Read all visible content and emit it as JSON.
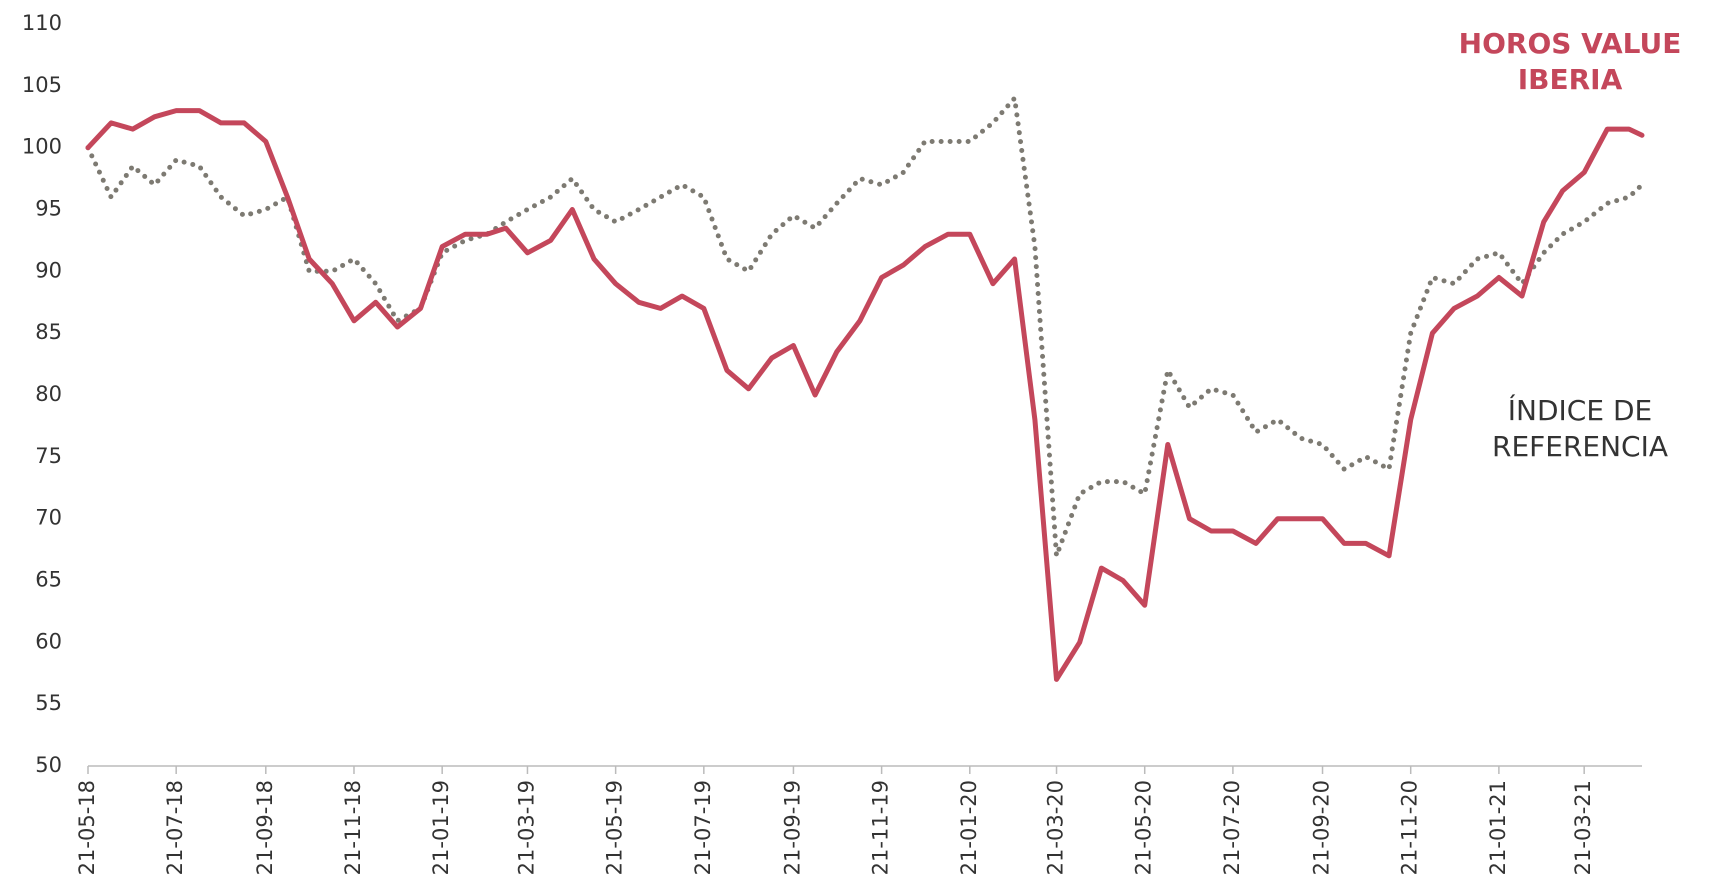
{
  "chart_data": {
    "type": "line",
    "x": [
      "2018-05-21",
      "2018-06-06",
      "2018-06-21",
      "2018-07-06",
      "2018-07-21",
      "2018-08-06",
      "2018-08-21",
      "2018-09-06",
      "2018-09-21",
      "2018-10-06",
      "2018-10-21",
      "2018-11-06",
      "2018-11-21",
      "2018-12-06",
      "2018-12-21",
      "2019-01-06",
      "2019-01-21",
      "2019-02-06",
      "2019-02-21",
      "2019-03-06",
      "2019-03-21",
      "2019-04-06",
      "2019-04-21",
      "2019-05-06",
      "2019-05-21",
      "2019-06-06",
      "2019-06-21",
      "2019-07-06",
      "2019-07-21",
      "2019-08-06",
      "2019-08-21",
      "2019-09-06",
      "2019-09-21",
      "2019-10-06",
      "2019-10-21",
      "2019-11-06",
      "2019-11-21",
      "2019-12-06",
      "2019-12-21",
      "2020-01-06",
      "2020-01-21",
      "2020-02-06",
      "2020-02-21",
      "2020-03-06",
      "2020-03-21",
      "2020-04-06",
      "2020-04-21",
      "2020-05-06",
      "2020-05-21",
      "2020-06-06",
      "2020-06-21",
      "2020-07-06",
      "2020-07-21",
      "2020-08-06",
      "2020-08-21",
      "2020-09-06",
      "2020-09-21",
      "2020-10-06",
      "2020-10-21",
      "2020-11-06",
      "2020-11-21",
      "2020-12-06",
      "2020-12-21",
      "2021-01-06",
      "2021-01-21",
      "2021-02-06",
      "2021-02-21",
      "2021-03-06",
      "2021-03-21",
      "2021-04-06",
      "2021-04-21",
      "2021-04-30"
    ],
    "series": [
      {
        "name": "HOROS VALUE IBERIA",
        "color": "#c4475b",
        "style": "solid",
        "values": [
          100,
          102,
          101.5,
          102.5,
          103,
          103,
          102,
          102,
          100.5,
          96,
          91,
          89,
          86,
          87.5,
          85.5,
          87,
          92,
          93,
          93,
          93.5,
          91.5,
          92.5,
          95,
          91,
          89,
          87.5,
          87,
          88,
          87,
          82,
          80.5,
          83,
          84,
          80,
          83.5,
          86,
          89.5,
          90.5,
          92,
          93,
          93,
          89,
          91,
          78,
          57,
          60,
          66,
          65,
          63,
          76,
          70,
          69,
          69,
          68,
          70,
          70,
          70,
          68,
          68,
          67,
          78,
          85,
          87,
          88,
          89.5,
          88,
          94,
          96.5,
          98,
          101.5,
          101.5,
          101
        ]
      },
      {
        "name": "ÍNDICE DE REFERENCIA",
        "color": "#7d7a72",
        "style": "dotted",
        "values": [
          100,
          96,
          98.5,
          97,
          99,
          98.5,
          96,
          94.5,
          95,
          96,
          90,
          90,
          91,
          89,
          86,
          87,
          91.5,
          92.5,
          93,
          94,
          95,
          96,
          97.5,
          95,
          94,
          95,
          96,
          97,
          96,
          91,
          90,
          93,
          94.5,
          93.5,
          95.5,
          97.5,
          97,
          98,
          100.5,
          100.5,
          100.5,
          102,
          104,
          92,
          67,
          72,
          73,
          73,
          72,
          82,
          79,
          80.5,
          80,
          77,
          78,
          76.5,
          76,
          74,
          75,
          74,
          85,
          89.5,
          89,
          91,
          91.5,
          89,
          91.5,
          93,
          94,
          95.5,
          96,
          97
        ]
      }
    ],
    "xlim": [
      "2018-05-21",
      "2021-04-30"
    ],
    "xticks": [
      {
        "value": "2018-05-21",
        "label": "21-05-18"
      },
      {
        "value": "2018-07-21",
        "label": "21-07-18"
      },
      {
        "value": "2018-09-21",
        "label": "21-09-18"
      },
      {
        "value": "2018-11-21",
        "label": "21-11-18"
      },
      {
        "value": "2019-01-21",
        "label": "21-01-19"
      },
      {
        "value": "2019-03-21",
        "label": "21-03-19"
      },
      {
        "value": "2019-05-21",
        "label": "21-05-19"
      },
      {
        "value": "2019-07-21",
        "label": "21-07-19"
      },
      {
        "value": "2019-09-21",
        "label": "21-09-19"
      },
      {
        "value": "2019-11-21",
        "label": "21-11-19"
      },
      {
        "value": "2020-01-21",
        "label": "21-01-20"
      },
      {
        "value": "2020-03-21",
        "label": "21-03-20"
      },
      {
        "value": "2020-05-21",
        "label": "21-05-20"
      },
      {
        "value": "2020-07-21",
        "label": "21-07-20"
      },
      {
        "value": "2020-09-21",
        "label": "21-09-20"
      },
      {
        "value": "2020-11-21",
        "label": "21-11-20"
      },
      {
        "value": "2021-01-21",
        "label": "21-01-21"
      },
      {
        "value": "2021-03-21",
        "label": "21-03-21"
      }
    ],
    "ylim": [
      50,
      110
    ],
    "yticks": [
      50,
      55,
      60,
      65,
      70,
      75,
      80,
      85,
      90,
      95,
      100,
      105,
      110
    ],
    "grid": false
  }
}
